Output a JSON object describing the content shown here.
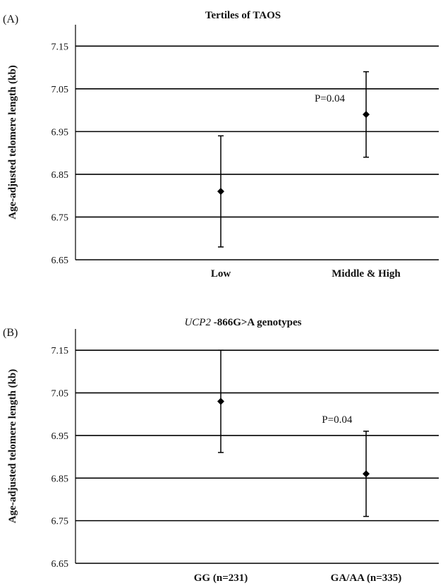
{
  "chart_data": [
    {
      "type": "scatter",
      "panel_label": "(A)",
      "title": "Tertiles of TAOS",
      "title_italic_prefix": "",
      "ylabel": "Age-adjusted telomere length (kb)",
      "xlabel": "",
      "categories": [
        "Low",
        "Middle & High"
      ],
      "values": [
        6.81,
        6.99
      ],
      "error_low": [
        6.68,
        6.89
      ],
      "error_high": [
        6.94,
        7.09
      ],
      "yticks": [
        "6.65",
        "6.75",
        "6.85",
        "6.95",
        "7.05",
        "7.15"
      ],
      "ylim": [
        6.65,
        7.2
      ],
      "grid": true,
      "annotation": "P=0.04",
      "annotation_x": 0.7,
      "annotation_y": 7.02
    },
    {
      "type": "scatter",
      "panel_label": "(B)",
      "title": "-866G>A genotypes",
      "title_italic_prefix": "UCP2",
      "ylabel": "Age-adjusted telomere length (kb)",
      "xlabel": "",
      "categories": [
        "GG (n=231)",
        "GA/AA (n=335)"
      ],
      "values": [
        7.03,
        6.86
      ],
      "error_low": [
        6.91,
        6.76
      ],
      "error_high": [
        7.15,
        6.96
      ],
      "yticks": [
        "6.65",
        "6.75",
        "6.85",
        "6.95",
        "7.05",
        "7.15"
      ],
      "ylim": [
        6.65,
        7.2
      ],
      "grid": true,
      "annotation": "P=0.04",
      "annotation_x": 0.72,
      "annotation_y": 6.98
    }
  ]
}
